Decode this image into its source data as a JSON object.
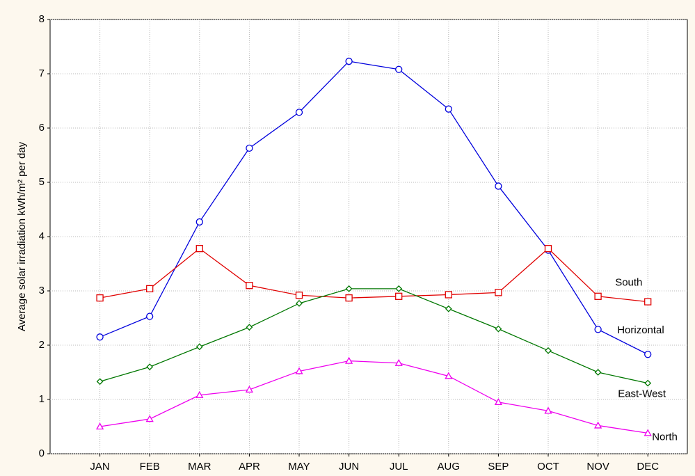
{
  "chart_data": {
    "type": "line",
    "y_label": "Average solar irradiation kWh/m² per day",
    "categories": [
      "JAN",
      "FEB",
      "MAR",
      "APR",
      "MAY",
      "JUN",
      "JUL",
      "AUG",
      "SEP",
      "OCT",
      "NOV",
      "DEC"
    ],
    "series": [
      {
        "name": "Horizontal",
        "color": "#0000dd",
        "marker": "circle",
        "values": [
          2.15,
          2.53,
          4.27,
          5.63,
          6.29,
          7.23,
          7.08,
          6.35,
          4.93,
          3.75,
          2.29,
          1.83
        ]
      },
      {
        "name": "South",
        "color": "#e00000",
        "marker": "square",
        "values": [
          2.87,
          3.04,
          3.78,
          3.1,
          2.92,
          2.87,
          2.9,
          2.93,
          2.97,
          3.78,
          2.9,
          2.8
        ]
      },
      {
        "name": "East-West",
        "color": "#007700",
        "marker": "diamond",
        "values": [
          1.33,
          1.6,
          1.97,
          2.33,
          2.77,
          3.04,
          3.04,
          2.67,
          2.3,
          1.9,
          1.5,
          1.3
        ]
      },
      {
        "name": "North",
        "color": "#ee00ee",
        "marker": "triangle",
        "values": [
          0.5,
          0.64,
          1.08,
          1.18,
          1.52,
          1.71,
          1.67,
          1.43,
          0.95,
          0.79,
          0.52,
          0.38
        ]
      }
    ],
    "ylim": [
      0,
      8
    ],
    "yticks": [
      0,
      1,
      2,
      3,
      4,
      5,
      6,
      7,
      8
    ],
    "grid": true
  }
}
